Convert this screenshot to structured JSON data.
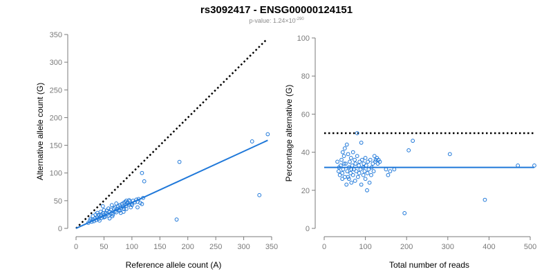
{
  "title": "rs3092417 - ENSG00000124151",
  "subtitle": {
    "prefix": "p-value: 1.24×10",
    "exponent": "-290"
  },
  "colors": {
    "points": "#1f78d9",
    "fit_line": "#1f78d9",
    "reference_line": "#000000",
    "axis": "#7a7a7a"
  },
  "chart_data": [
    {
      "type": "scatter",
      "xlabel": "Reference allele count (A)",
      "ylabel": "Alternative allele count (G)",
      "xlim": [
        0,
        350
      ],
      "ylim": [
        0,
        350
      ],
      "xticks": [
        0,
        50,
        100,
        150,
        200,
        250,
        300,
        350
      ],
      "yticks": [
        0,
        50,
        100,
        150,
        200,
        250,
        300,
        350
      ],
      "grid": false,
      "reference_line": {
        "style": "dotted",
        "x": [
          0,
          340
        ],
        "y": [
          0,
          340
        ]
      },
      "fit_line": {
        "x": [
          0,
          343
        ],
        "y": [
          0,
          159
        ]
      },
      "points": [
        [
          22,
          10
        ],
        [
          25,
          14
        ],
        [
          28,
          12
        ],
        [
          30,
          16
        ],
        [
          32,
          13
        ],
        [
          34,
          18
        ],
        [
          36,
          15
        ],
        [
          38,
          20
        ],
        [
          40,
          17
        ],
        [
          42,
          14
        ],
        [
          44,
          22
        ],
        [
          45,
          25
        ],
        [
          46,
          19
        ],
        [
          48,
          27
        ],
        [
          50,
          24
        ],
        [
          50,
          20
        ],
        [
          52,
          21
        ],
        [
          54,
          28
        ],
        [
          55,
          32
        ],
        [
          56,
          26
        ],
        [
          58,
          23
        ],
        [
          60,
          30
        ],
        [
          62,
          34
        ],
        [
          64,
          27
        ],
        [
          66,
          25
        ],
        [
          68,
          36
        ],
        [
          70,
          38
        ],
        [
          70,
          31
        ],
        [
          72,
          29
        ],
        [
          74,
          35
        ],
        [
          75,
          40
        ],
        [
          76,
          33
        ],
        [
          78,
          42
        ],
        [
          80,
          37
        ],
        [
          80,
          28
        ],
        [
          82,
          44
        ],
        [
          84,
          39
        ],
        [
          85,
          46
        ],
        [
          86,
          35
        ],
        [
          88,
          48
        ],
        [
          90,
          50
        ],
        [
          90,
          41
        ],
        [
          92,
          47
        ],
        [
          94,
          43
        ],
        [
          95,
          51
        ],
        [
          96,
          49
        ],
        [
          98,
          38
        ],
        [
          100,
          45
        ],
        [
          102,
          50
        ],
        [
          105,
          47
        ],
        [
          108,
          52
        ],
        [
          110,
          48
        ],
        [
          112,
          53
        ],
        [
          115,
          46
        ],
        [
          118,
          44
        ],
        [
          120,
          55
        ],
        [
          122,
          85
        ],
        [
          48,
          40
        ],
        [
          50,
          33
        ],
        [
          30,
          22
        ],
        [
          35,
          25
        ],
        [
          38,
          28
        ],
        [
          26,
          17
        ],
        [
          40,
          24
        ],
        [
          44,
          30
        ],
        [
          58,
          36
        ],
        [
          64,
          42
        ],
        [
          72,
          45
        ],
        [
          78,
          32
        ],
        [
          85,
          30
        ],
        [
          60,
          18
        ],
        [
          65,
          22
        ],
        [
          90,
          35
        ],
        [
          100,
          42
        ],
        [
          110,
          38
        ],
        [
          118,
          100
        ],
        [
          180,
          16
        ],
        [
          185,
          120
        ],
        [
          315,
          157
        ],
        [
          328,
          60
        ],
        [
          343,
          170
        ]
      ]
    },
    {
      "type": "scatter",
      "xlabel": "Total number of reads",
      "ylabel": "Percentage alternative (G)",
      "xlim": [
        0,
        510
      ],
      "ylim": [
        0,
        100
      ],
      "xticks": [
        0,
        100,
        200,
        300,
        400,
        500
      ],
      "yticks": [
        0,
        20,
        40,
        60,
        80,
        100
      ],
      "grid": false,
      "reference_line": {
        "style": "dotted",
        "x": [
          0,
          510
        ],
        "y": [
          50,
          50
        ]
      },
      "fit_line": {
        "x": [
          0,
          510
        ],
        "y": [
          32,
          32
        ]
      },
      "points": [
        [
          32,
          35
        ],
        [
          35,
          30
        ],
        [
          38,
          28
        ],
        [
          40,
          33
        ],
        [
          42,
          36
        ],
        [
          44,
          29
        ],
        [
          45,
          40
        ],
        [
          46,
          31
        ],
        [
          48,
          38
        ],
        [
          50,
          42
        ],
        [
          50,
          27
        ],
        [
          52,
          34
        ],
        [
          54,
          23
        ],
        [
          55,
          44
        ],
        [
          56,
          30
        ],
        [
          58,
          39
        ],
        [
          60,
          32
        ],
        [
          60,
          26
        ],
        [
          62,
          35
        ],
        [
          64,
          29
        ],
        [
          65,
          37
        ],
        [
          66,
          24
        ],
        [
          68,
          33
        ],
        [
          70,
          40
        ],
        [
          70,
          28
        ],
        [
          72,
          31
        ],
        [
          74,
          36
        ],
        [
          75,
          25
        ],
        [
          76,
          34
        ],
        [
          78,
          30
        ],
        [
          80,
          50
        ],
        [
          80,
          38
        ],
        [
          82,
          27
        ],
        [
          84,
          33
        ],
        [
          85,
          29
        ],
        [
          86,
          35
        ],
        [
          88,
          31
        ],
        [
          90,
          45
        ],
        [
          90,
          23
        ],
        [
          92,
          36
        ],
        [
          94,
          32
        ],
        [
          95,
          28
        ],
        [
          96,
          34
        ],
        [
          98,
          30
        ],
        [
          100,
          37
        ],
        [
          100,
          26
        ],
        [
          102,
          33
        ],
        [
          104,
          20
        ],
        [
          105,
          29
        ],
        [
          106,
          35
        ],
        [
          108,
          31
        ],
        [
          110,
          24
        ],
        [
          112,
          36
        ],
        [
          114,
          28
        ],
        [
          115,
          32
        ],
        [
          118,
          34
        ],
        [
          120,
          30
        ],
        [
          122,
          38
        ],
        [
          124,
          35
        ],
        [
          125,
          36
        ],
        [
          128,
          37
        ],
        [
          130,
          34
        ],
        [
          132,
          36
        ],
        [
          135,
          35
        ],
        [
          150,
          31
        ],
        [
          155,
          28
        ],
        [
          160,
          30
        ],
        [
          170,
          31
        ],
        [
          195,
          8
        ],
        [
          205,
          41
        ],
        [
          215,
          46
        ],
        [
          305,
          39
        ],
        [
          390,
          15
        ],
        [
          470,
          33
        ],
        [
          510,
          33
        ],
        [
          36,
          32
        ],
        [
          44,
          26
        ],
        [
          48,
          34
        ],
        [
          58,
          27
        ],
        [
          66,
          31
        ]
      ]
    }
  ]
}
